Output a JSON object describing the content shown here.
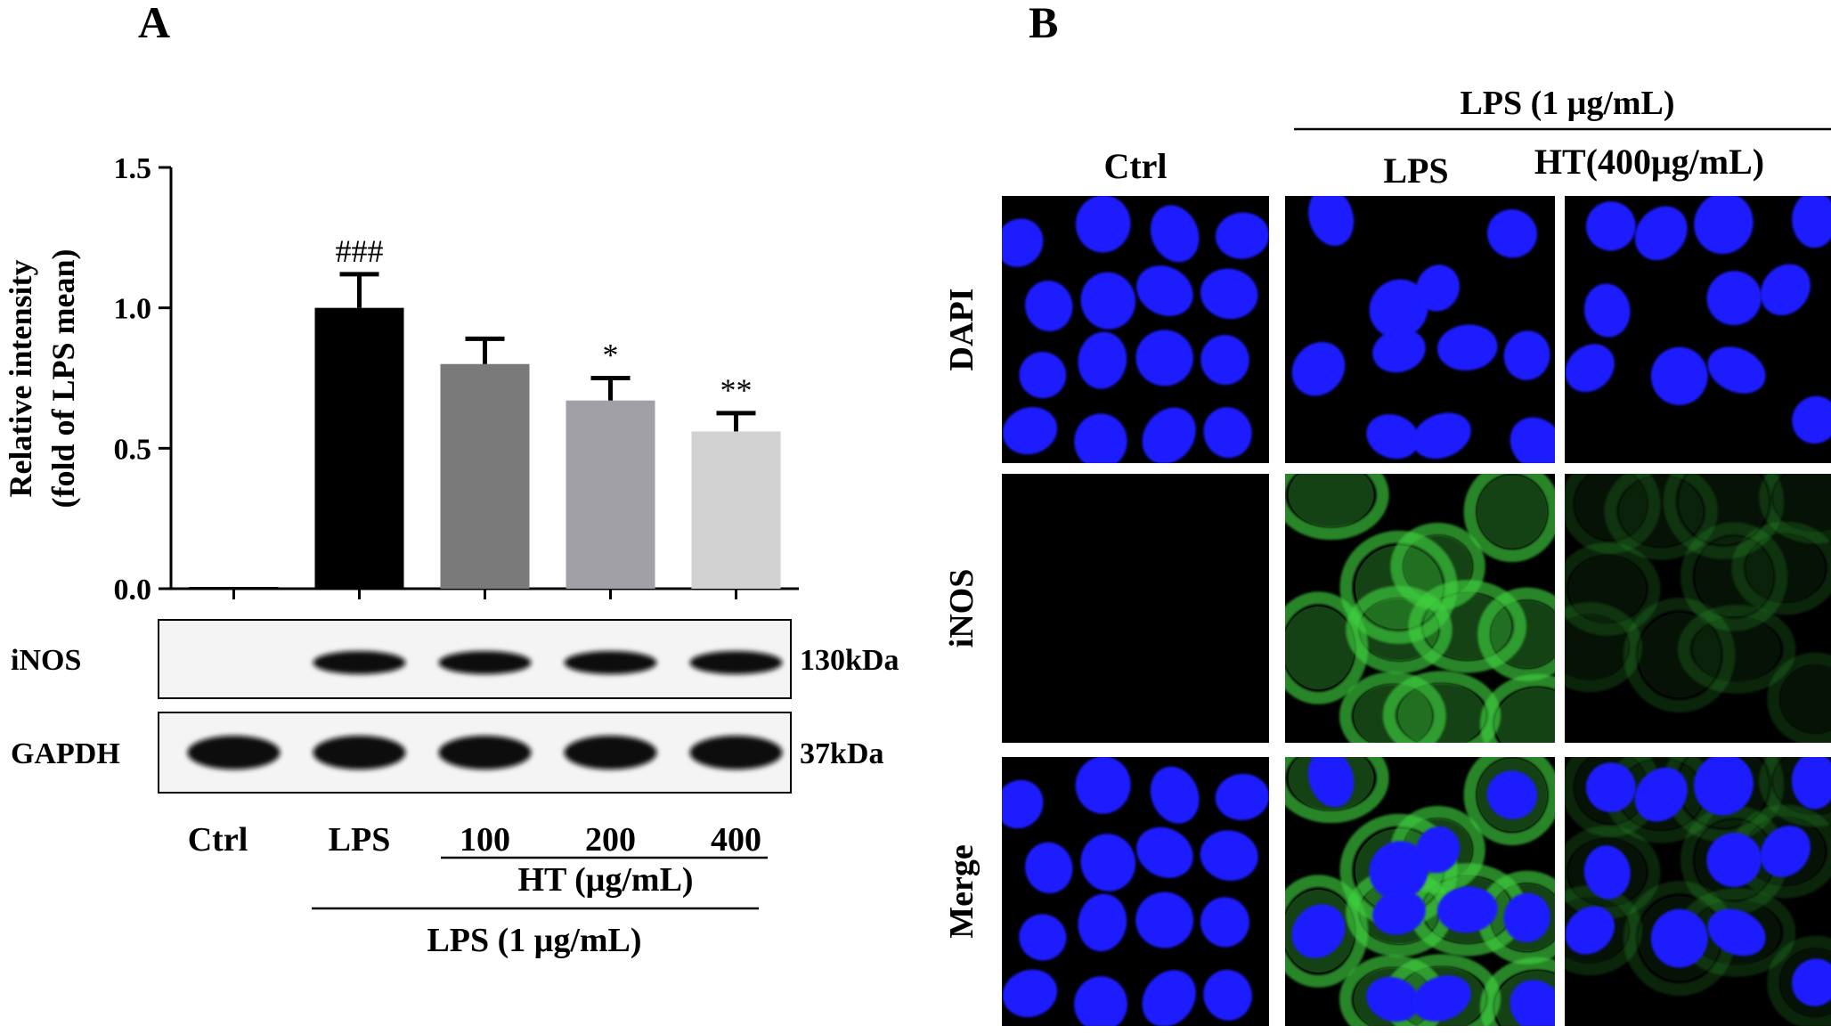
{
  "panel_a": {
    "label": "A",
    "chart_data": {
      "type": "bar",
      "categories": [
        "Ctrl",
        "LPS",
        "100",
        "200",
        "400"
      ],
      "values": [
        0.005,
        1.0,
        0.8,
        0.67,
        0.56
      ],
      "errors": [
        0.0,
        0.12,
        0.09,
        0.08,
        0.065
      ],
      "annotations": [
        "",
        "###",
        "",
        "*",
        "**"
      ],
      "bar_colors": [
        "#000000",
        "#000000",
        "#7a7a7a",
        "#a0a0a6",
        "#d2d2d2"
      ],
      "ylabel_line1": "Relative intensity",
      "ylabel_line2": "(fold of LPS mean)",
      "yticks": [
        "0.0",
        "0.5",
        "1.0",
        "1.5"
      ],
      "ylim": [
        0,
        1.5
      ],
      "grid": false
    },
    "blot": {
      "rows": [
        {
          "name": "iNOS",
          "size": "130kDa",
          "present": [
            false,
            true,
            true,
            true,
            true
          ]
        },
        {
          "name": "GAPDH",
          "size": "37kDa",
          "present": [
            true,
            true,
            true,
            true,
            true
          ]
        }
      ]
    },
    "group_labels": {
      "ht": "HT (μg/mL)",
      "lps": "LPS (1 μg/mL)"
    }
  },
  "panel_b": {
    "label": "B",
    "header_group": "LPS (1 μg/mL)",
    "columns": [
      "Ctrl",
      "LPS",
      "HT(400μg/mL)"
    ],
    "rows": [
      "DAPI",
      "iNOS",
      "Merge"
    ],
    "colors": {
      "nucleus": "#1a1aff",
      "inos": "#3fd23f",
      "background": "#000000"
    },
    "inos_intensity": [
      0.02,
      0.9,
      0.25
    ]
  }
}
